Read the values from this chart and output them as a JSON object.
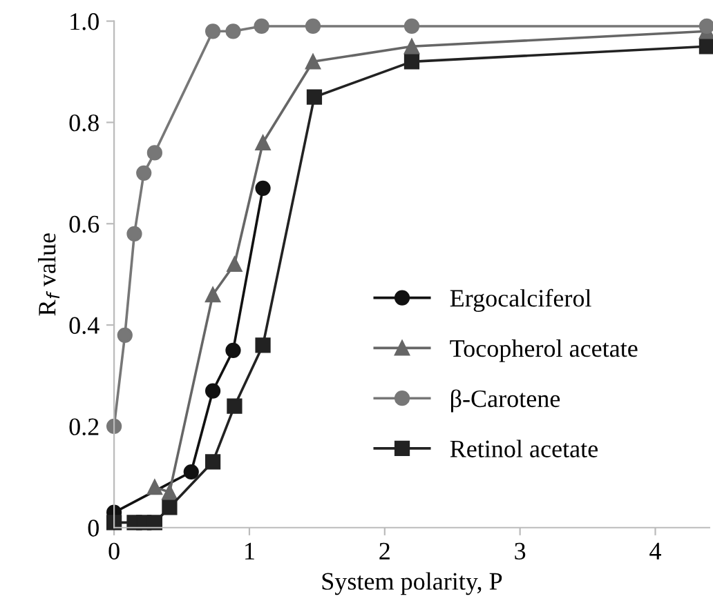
{
  "chart_data": {
    "type": "line",
    "xlabel": "System polarity, P",
    "ylabel": "R$_{f}$ value",
    "xlim": [
      0,
      4.4
    ],
    "xticks": [
      0,
      1,
      2,
      3,
      4
    ],
    "ylim": [
      0,
      1.0
    ],
    "yticks": [
      0,
      0.2,
      0.4,
      0.6,
      0.8,
      {
        "value": 1.0,
        "label": "1.0"
      }
    ],
    "grid": false,
    "legend": "center right",
    "line_style": "solid",
    "series": [
      {
        "name": "Ergocalciferol",
        "color": "#111111",
        "marker": "circle",
        "x": [
          0,
          0.57,
          0.73,
          0.88,
          1.1
        ],
        "values": [
          0.03,
          0.11,
          0.27,
          0.35,
          0.67
        ]
      },
      {
        "name": "Tocopherol acetate",
        "color": "#666666",
        "marker": "triangle",
        "x": [
          0.3,
          0.41,
          0.73,
          0.89,
          1.1,
          1.47,
          2.2,
          4.38
        ],
        "values": [
          0.08,
          0.07,
          0.46,
          0.52,
          0.76,
          0.92,
          0.95,
          0.98
        ]
      },
      {
        "name": "β-Carotene",
        "color": "#777777",
        "marker": "circle",
        "x": [
          0,
          0.08,
          0.15,
          0.22,
          0.3,
          0.73,
          0.88,
          1.09,
          1.47,
          2.2,
          4.38
        ],
        "values": [
          0.2,
          0.38,
          0.58,
          0.7,
          0.74,
          0.98,
          0.98,
          0.99,
          0.99,
          0.99,
          0.99
        ]
      },
      {
        "name": "Retinol acetate",
        "color": "#222222",
        "marker": "square",
        "x": [
          0,
          0.15,
          0.22,
          0.3,
          0.41,
          0.73,
          0.89,
          1.1,
          1.48,
          2.2,
          4.38
        ],
        "values": [
          0.01,
          0.01,
          0.01,
          0.01,
          0.04,
          0.13,
          0.24,
          0.36,
          0.85,
          0.92,
          0.95
        ]
      }
    ]
  }
}
